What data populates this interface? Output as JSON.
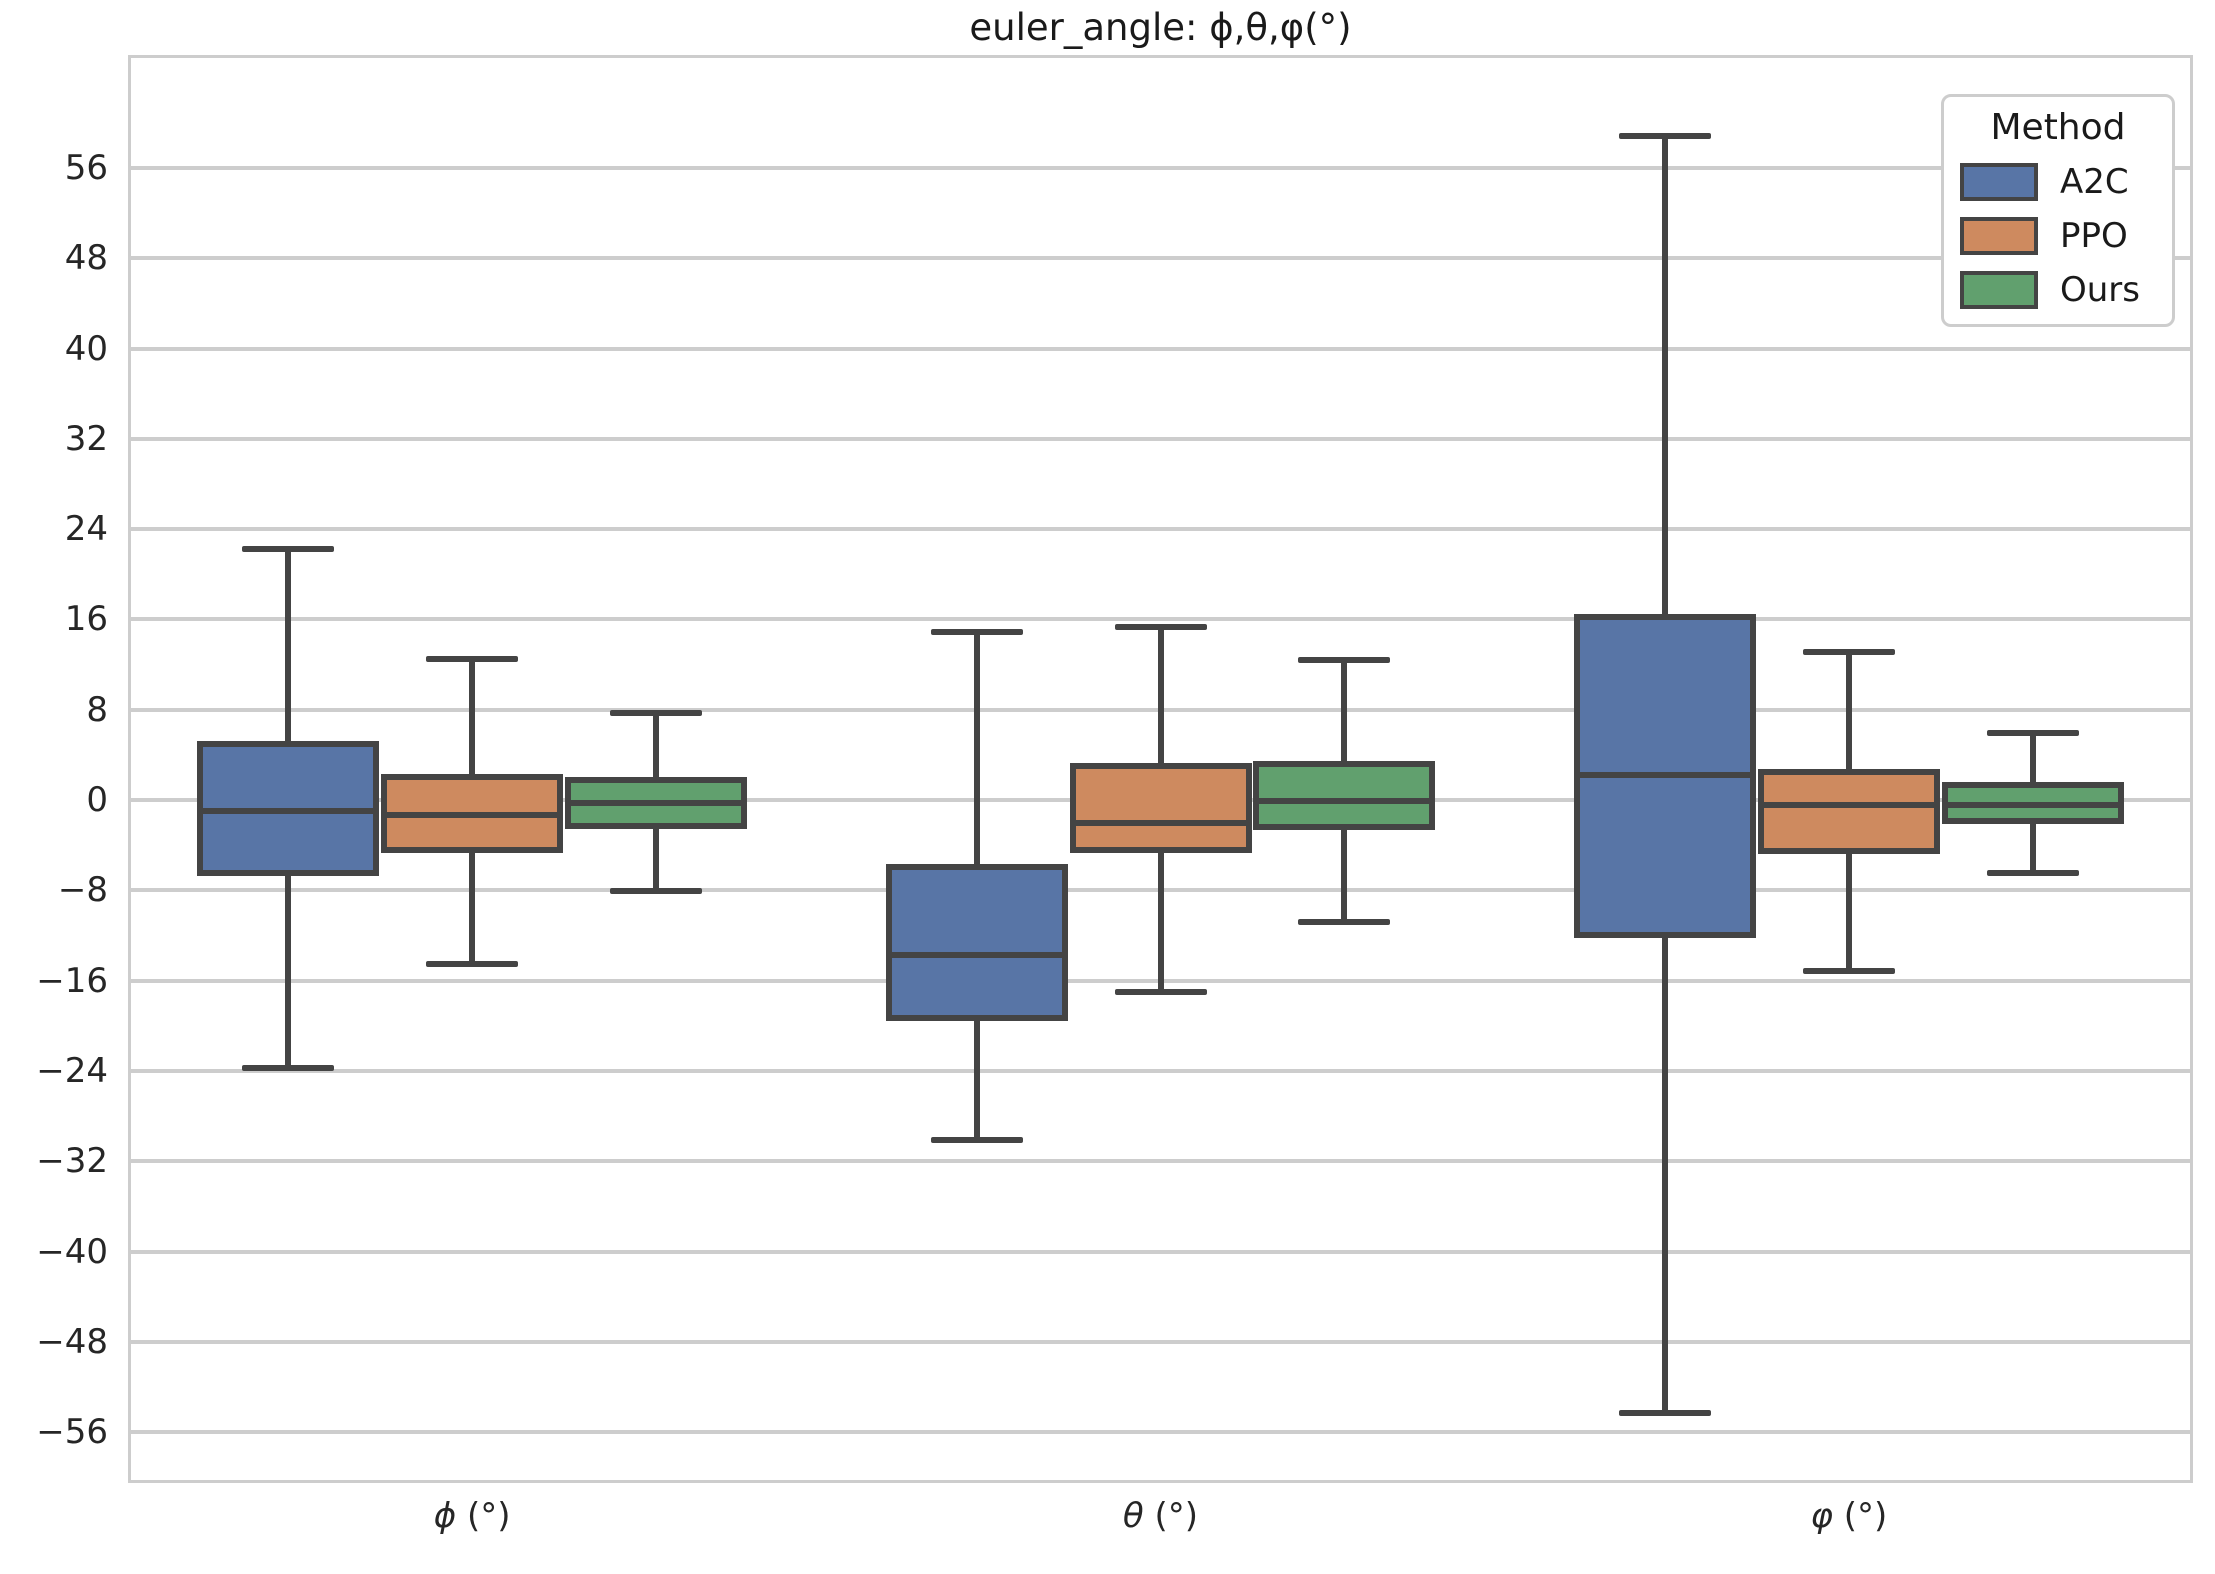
{
  "title": "euler_angle: ϕ,θ,φ(°)",
  "legend": {
    "title": "Method",
    "entries": [
      {
        "label": "A2C"
      },
      {
        "label": "PPO"
      },
      {
        "label": "Ours"
      }
    ]
  },
  "styles": {
    "edge_color": "#444444",
    "grid_color": "#cdcdcd",
    "background": "#ffffff",
    "text_color": "#262626",
    "series_colors": [
      "#5875A6",
      "#CE8A5F",
      "#61A06E"
    ]
  },
  "chart_data": {
    "type": "box",
    "title": "euler_angle: ϕ,θ,φ(°)",
    "categories": [
      {
        "symbol": "ϕ",
        "unit": "(°)",
        "label": "ϕ (°)"
      },
      {
        "symbol": "θ",
        "unit": "(°)",
        "label": "θ (°)"
      },
      {
        "symbol": "φ",
        "unit": "(°)",
        "label": "φ (°)"
      }
    ],
    "ylim": [
      -60.5,
      66
    ],
    "yticks": [
      56,
      48,
      40,
      32,
      24,
      16,
      8,
      0,
      -8,
      -16,
      -24,
      -32,
      -40,
      -48,
      -56
    ],
    "grid": true,
    "legend_position": "upper right",
    "legend_title": "Method",
    "series": [
      {
        "name": "A2C",
        "color": "#5875A6",
        "boxes": [
          {
            "whislo": -23.7,
            "q1": -6.5,
            "med": -1.0,
            "q3": 5.0,
            "whishi": 22.2
          },
          {
            "whislo": -30.1,
            "q1": -19.3,
            "med": -13.7,
            "q3": -5.9,
            "whishi": 14.9
          },
          {
            "whislo": -54.3,
            "q1": -12.0,
            "med": 2.2,
            "q3": 16.2,
            "whishi": 58.8
          }
        ]
      },
      {
        "name": "PPO",
        "color": "#CE8A5F",
        "boxes": [
          {
            "whislo": -14.5,
            "q1": -4.4,
            "med": -1.3,
            "q3": 2.0,
            "whishi": 12.5
          },
          {
            "whislo": -17.0,
            "q1": -4.4,
            "med": -2.0,
            "q3": 3.0,
            "whishi": 15.3
          },
          {
            "whislo": -15.1,
            "q1": -4.5,
            "med": -0.4,
            "q3": 2.5,
            "whishi": 13.1
          }
        ]
      },
      {
        "name": "Ours",
        "color": "#61A06E",
        "boxes": [
          {
            "whislo": -8.1,
            "q1": -2.3,
            "med": -0.3,
            "q3": 1.8,
            "whishi": 7.7
          },
          {
            "whislo": -10.8,
            "q1": -2.4,
            "med": -0.1,
            "q3": 3.2,
            "whishi": 12.4
          },
          {
            "whislo": -6.5,
            "q1": -1.9,
            "med": -0.4,
            "q3": 1.3,
            "whishi": 5.9
          }
        ]
      }
    ]
  }
}
